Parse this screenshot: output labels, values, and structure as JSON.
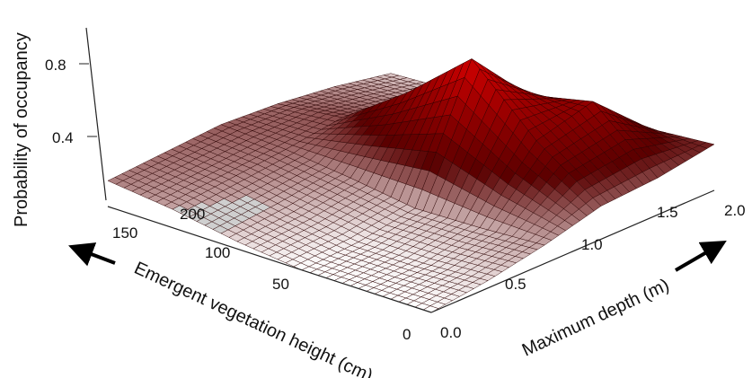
{
  "chart_data": {
    "type": "surface",
    "zlabel": "Probability of occupancy",
    "xlabel": "Emergent vegetation height (cm)",
    "ylabel": "Maximum depth (m)",
    "z_ticks": [
      "0.4",
      "0.8"
    ],
    "x_ticks": [
      "0",
      "50",
      "100",
      "150",
      "200"
    ],
    "y_ticks": [
      "0.0",
      "0.5",
      "1.0",
      "1.5",
      "2.0"
    ],
    "zlim": [
      0.2,
      1.0
    ],
    "xlim": [
      0,
      200
    ],
    "ylim": [
      0,
      2.0
    ],
    "grid_x": [
      0,
      40,
      80,
      120,
      160,
      200
    ],
    "grid_y": [
      0.0,
      0.4,
      0.8,
      1.2,
      1.6,
      2.0
    ],
    "z_values": [
      [
        0.2,
        0.24,
        0.3,
        0.38,
        0.4,
        0.45
      ],
      [
        0.2,
        0.22,
        0.28,
        0.62,
        0.7,
        0.42
      ],
      [
        0.2,
        0.22,
        0.27,
        0.95,
        0.62,
        0.35
      ],
      [
        0.24,
        0.27,
        0.32,
        0.65,
        0.45,
        0.3
      ],
      [
        0.3,
        0.33,
        0.36,
        0.4,
        0.34,
        0.28
      ],
      [
        0.34,
        0.36,
        0.38,
        0.36,
        0.32,
        0.26
      ]
    ],
    "surface_colors": {
      "low": "#ffffff",
      "mid": "#5a0000",
      "high": "#e00000"
    }
  }
}
